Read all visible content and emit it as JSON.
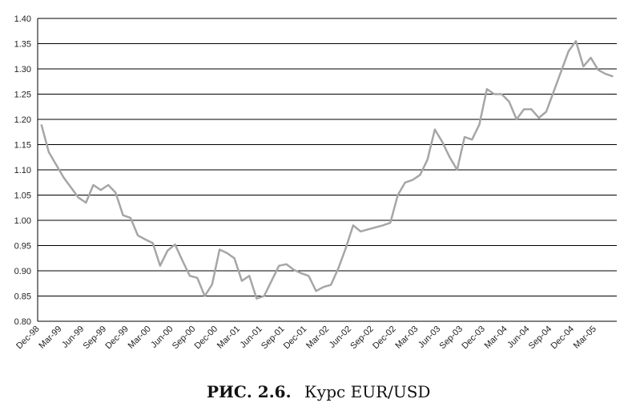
{
  "chart_data": {
    "type": "line",
    "caption": {
      "label": "РИС. 2.6.",
      "text": "Курс EUR/USD"
    },
    "categories": [
      "Dec-98",
      null,
      null,
      "Mar-99",
      null,
      null,
      "Jun-99",
      null,
      null,
      "Sep-99",
      null,
      null,
      "Dec-99",
      null,
      null,
      "Mar-00",
      null,
      null,
      "Jun-00",
      null,
      null,
      "Sep-00",
      null,
      null,
      "Dec-00",
      null,
      null,
      "Mar-01",
      null,
      null,
      "Jun-01",
      null,
      null,
      "Sep-01",
      null,
      null,
      "Dec-01",
      null,
      null,
      "Mar-02",
      null,
      null,
      "Jun-02",
      null,
      null,
      "Sep-02",
      null,
      null,
      "Dec-02",
      null,
      null,
      "Mar-03",
      null,
      null,
      "Jun-03",
      null,
      null,
      "Sep-03",
      null,
      null,
      "Dec-03",
      null,
      null,
      "Mar-04",
      null,
      null,
      "Jun-04",
      null,
      null,
      "Sep-04",
      null,
      null,
      "Dec-04",
      null,
      null,
      "Mar-05",
      null,
      null
    ],
    "series": [
      {
        "color": "#a6a6a6",
        "values": [
          1.19,
          1.135,
          1.11,
          1.085,
          1.065,
          1.045,
          1.035,
          1.07,
          1.06,
          1.07,
          1.055,
          1.01,
          1.005,
          0.97,
          0.962,
          0.955,
          0.91,
          0.94,
          0.952,
          0.92,
          0.89,
          0.886,
          0.85,
          0.873,
          0.942,
          0.935,
          0.925,
          0.88,
          0.89,
          0.845,
          0.85,
          0.88,
          0.91,
          0.913,
          0.902,
          0.895,
          0.89,
          0.86,
          0.868,
          0.872,
          0.905,
          0.945,
          0.99,
          0.978,
          0.982,
          0.986,
          0.99,
          0.995,
          1.05,
          1.075,
          1.08,
          1.09,
          1.12,
          1.18,
          1.155,
          1.125,
          1.1,
          1.165,
          1.16,
          1.19,
          1.26,
          1.25,
          1.25,
          1.235,
          1.2,
          1.22,
          1.22,
          1.203,
          1.215,
          1.255,
          1.295,
          1.335,
          1.355,
          1.305,
          1.322,
          1.298,
          1.29,
          1.285
        ]
      }
    ],
    "ylim": [
      0.8,
      1.4
    ],
    "yticks": [
      {
        "value": 0.8,
        "label": "0.80"
      },
      {
        "value": 0.85,
        "label": "0.85"
      },
      {
        "value": 0.9,
        "label": "0.90"
      },
      {
        "value": 0.95,
        "label": "0.95"
      },
      {
        "value": 1.0,
        "label": "1.00"
      },
      {
        "value": 1.05,
        "label": "1.05"
      },
      {
        "value": 1.1,
        "label": "1.10"
      },
      {
        "value": 1.15,
        "label": "1.15"
      },
      {
        "value": 1.2,
        "label": "1.20"
      },
      {
        "value": 1.25,
        "label": "1.25"
      },
      {
        "value": 1.3,
        "label": "1.30"
      },
      {
        "value": 1.35,
        "label": "1.35"
      },
      {
        "value": 1.4,
        "label": "1.40"
      }
    ],
    "grid": true
  }
}
